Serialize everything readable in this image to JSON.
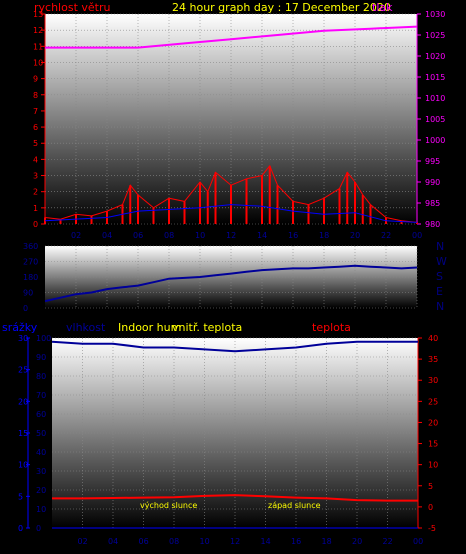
{
  "header": {
    "left_label": "rychlost větru",
    "title": "24 hour graph day : 17 December 2020",
    "right_label": "tlak"
  },
  "colors": {
    "wind": "#ff0000",
    "pressure": "#ff00ff",
    "title": "#ffff00",
    "dir": "#000099",
    "dirlabel": "#000080",
    "humidity": "#000099",
    "rain": "#0000ff",
    "indoor": "#ffff00",
    "temp": "#ff0000",
    "annot": "#ffff00"
  },
  "chart_data": [
    {
      "type": "line",
      "name": "wind-pressure",
      "title": "24 hour graph day : 17 December 2020",
      "ylabel_left": "rychlost větru",
      "ylabel_right": "tlak",
      "x_ticks": [
        "02",
        "04",
        "06",
        "08",
        "10",
        "12",
        "14",
        "16",
        "18",
        "20",
        "22",
        "00"
      ],
      "y_left_ticks": [
        "0",
        "1",
        "2",
        "3",
        "4",
        "5",
        "6",
        "7",
        "8",
        "9",
        "10",
        "11",
        "12",
        "13"
      ],
      "y_right_ticks": [
        "980",
        "985",
        "990",
        "995",
        "1000",
        "1005",
        "1010",
        "1015",
        "1020",
        "1025",
        "1030"
      ],
      "ylim_left": [
        0,
        13
      ],
      "ylim_right": [
        980,
        1030
      ],
      "xlim": [
        0,
        24
      ],
      "series": [
        {
          "name": "tlak",
          "axis": "right",
          "points": [
            [
              0,
              1022
            ],
            [
              3,
              1022
            ],
            [
              6,
              1022
            ],
            [
              9,
              1023
            ],
            [
              12,
              1024
            ],
            [
              15,
              1025
            ],
            [
              18,
              1026
            ],
            [
              21,
              1026.5
            ],
            [
              24,
              1027
            ]
          ]
        },
        {
          "name": "rychlost větru",
          "axis": "left",
          "points": [
            [
              0,
              0.4
            ],
            [
              1,
              0.3
            ],
            [
              2,
              0.6
            ],
            [
              3,
              0.5
            ],
            [
              4,
              0.8
            ],
            [
              5,
              1.2
            ],
            [
              5.5,
              2.4
            ],
            [
              6,
              1.8
            ],
            [
              7,
              1.0
            ],
            [
              8,
              1.6
            ],
            [
              9,
              1.4
            ],
            [
              10,
              2.6
            ],
            [
              10.5,
              2.0
            ],
            [
              11,
              3.2
            ],
            [
              12,
              2.4
            ],
            [
              13,
              2.8
            ],
            [
              14,
              3.0
            ],
            [
              14.5,
              3.6
            ],
            [
              15,
              2.4
            ],
            [
              16,
              1.4
            ],
            [
              17,
              1.2
            ],
            [
              18,
              1.6
            ],
            [
              19,
              2.2
            ],
            [
              19.5,
              3.2
            ],
            [
              20,
              2.6
            ],
            [
              20.5,
              1.8
            ],
            [
              21,
              1.2
            ],
            [
              22,
              0.4
            ],
            [
              23,
              0.2
            ],
            [
              24,
              0.1
            ]
          ]
        },
        {
          "name": "gust",
          "axis": "left",
          "points": [
            [
              0,
              0.2
            ],
            [
              4,
              0.4
            ],
            [
              6,
              0.8
            ],
            [
              10,
              1.0
            ],
            [
              12,
              1.2
            ],
            [
              14,
              1.1
            ],
            [
              16,
              0.8
            ],
            [
              18,
              0.6
            ],
            [
              20,
              0.7
            ],
            [
              22,
              0.2
            ],
            [
              24,
              0.1
            ]
          ]
        }
      ]
    },
    {
      "type": "line",
      "name": "wind-direction",
      "y_ticks": [
        "0",
        "90",
        "180",
        "270",
        "360"
      ],
      "side_labels": [
        "N",
        "W",
        "S",
        "E",
        "N"
      ],
      "ylim": [
        0,
        360
      ],
      "xlim": [
        0,
        24
      ],
      "series": [
        {
          "name": "direction",
          "points": [
            [
              0,
              40
            ],
            [
              1,
              60
            ],
            [
              2,
              80
            ],
            [
              3,
              90
            ],
            [
              4,
              110
            ],
            [
              5,
              120
            ],
            [
              6,
              130
            ],
            [
              7,
              150
            ],
            [
              8,
              170
            ],
            [
              9,
              175
            ],
            [
              10,
              180
            ],
            [
              11,
              190
            ],
            [
              12,
              200
            ],
            [
              13,
              210
            ],
            [
              14,
              220
            ],
            [
              15,
              225
            ],
            [
              16,
              230
            ],
            [
              17,
              230
            ],
            [
              18,
              235
            ],
            [
              19,
              240
            ],
            [
              20,
              245
            ],
            [
              21,
              240
            ],
            [
              22,
              235
            ],
            [
              23,
              230
            ],
            [
              24,
              235
            ]
          ]
        }
      ]
    },
    {
      "type": "line",
      "name": "humidity-temperature",
      "labels": {
        "rain": "srážky",
        "humidity": "vlhkost",
        "indoor": "Indoor hum",
        "indoor_temp": "vnitř. teplota",
        "temp": "teplota"
      },
      "annotations": [
        "východ slunce",
        "západ slunce"
      ],
      "x_ticks": [
        "02",
        "04",
        "06",
        "08",
        "10",
        "12",
        "14",
        "16",
        "18",
        "20",
        "22",
        "00"
      ],
      "y_left_ticks": [
        "0",
        "5",
        "10",
        "15",
        "20",
        "25",
        "30"
      ],
      "y_mid_ticks": [
        "0",
        "10",
        "20",
        "30",
        "40",
        "50",
        "60",
        "70",
        "80",
        "90",
        "100"
      ],
      "y_right_ticks": [
        "-5",
        "0",
        "5",
        "10",
        "15",
        "20",
        "25",
        "30",
        "35",
        "40"
      ],
      "ylim_left": [
        0,
        30
      ],
      "ylim_mid": [
        0,
        100
      ],
      "ylim_right": [
        -5,
        40
      ],
      "xlim": [
        0,
        24
      ],
      "series": [
        {
          "name": "vlhkost",
          "axis": "mid",
          "points": [
            [
              0,
              98
            ],
            [
              2,
              97
            ],
            [
              4,
              97
            ],
            [
              6,
              95
            ],
            [
              8,
              95
            ],
            [
              10,
              94
            ],
            [
              12,
              93
            ],
            [
              14,
              94
            ],
            [
              16,
              95
            ],
            [
              18,
              97
            ],
            [
              20,
              98
            ],
            [
              22,
              98
            ],
            [
              24,
              98
            ]
          ]
        },
        {
          "name": "teplota",
          "axis": "right",
          "points": [
            [
              0,
              2
            ],
            [
              2,
              2
            ],
            [
              4,
              2.1
            ],
            [
              6,
              2.2
            ],
            [
              8,
              2.3
            ],
            [
              10,
              2.6
            ],
            [
              12,
              2.8
            ],
            [
              14,
              2.5
            ],
            [
              16,
              2.2
            ],
            [
              18,
              2.0
            ],
            [
              20,
              1.6
            ],
            [
              22,
              1.5
            ],
            [
              24,
              1.5
            ]
          ]
        },
        {
          "name": "srážky",
          "axis": "left",
          "points": [
            [
              0,
              0
            ],
            [
              24,
              0
            ]
          ]
        }
      ]
    }
  ]
}
